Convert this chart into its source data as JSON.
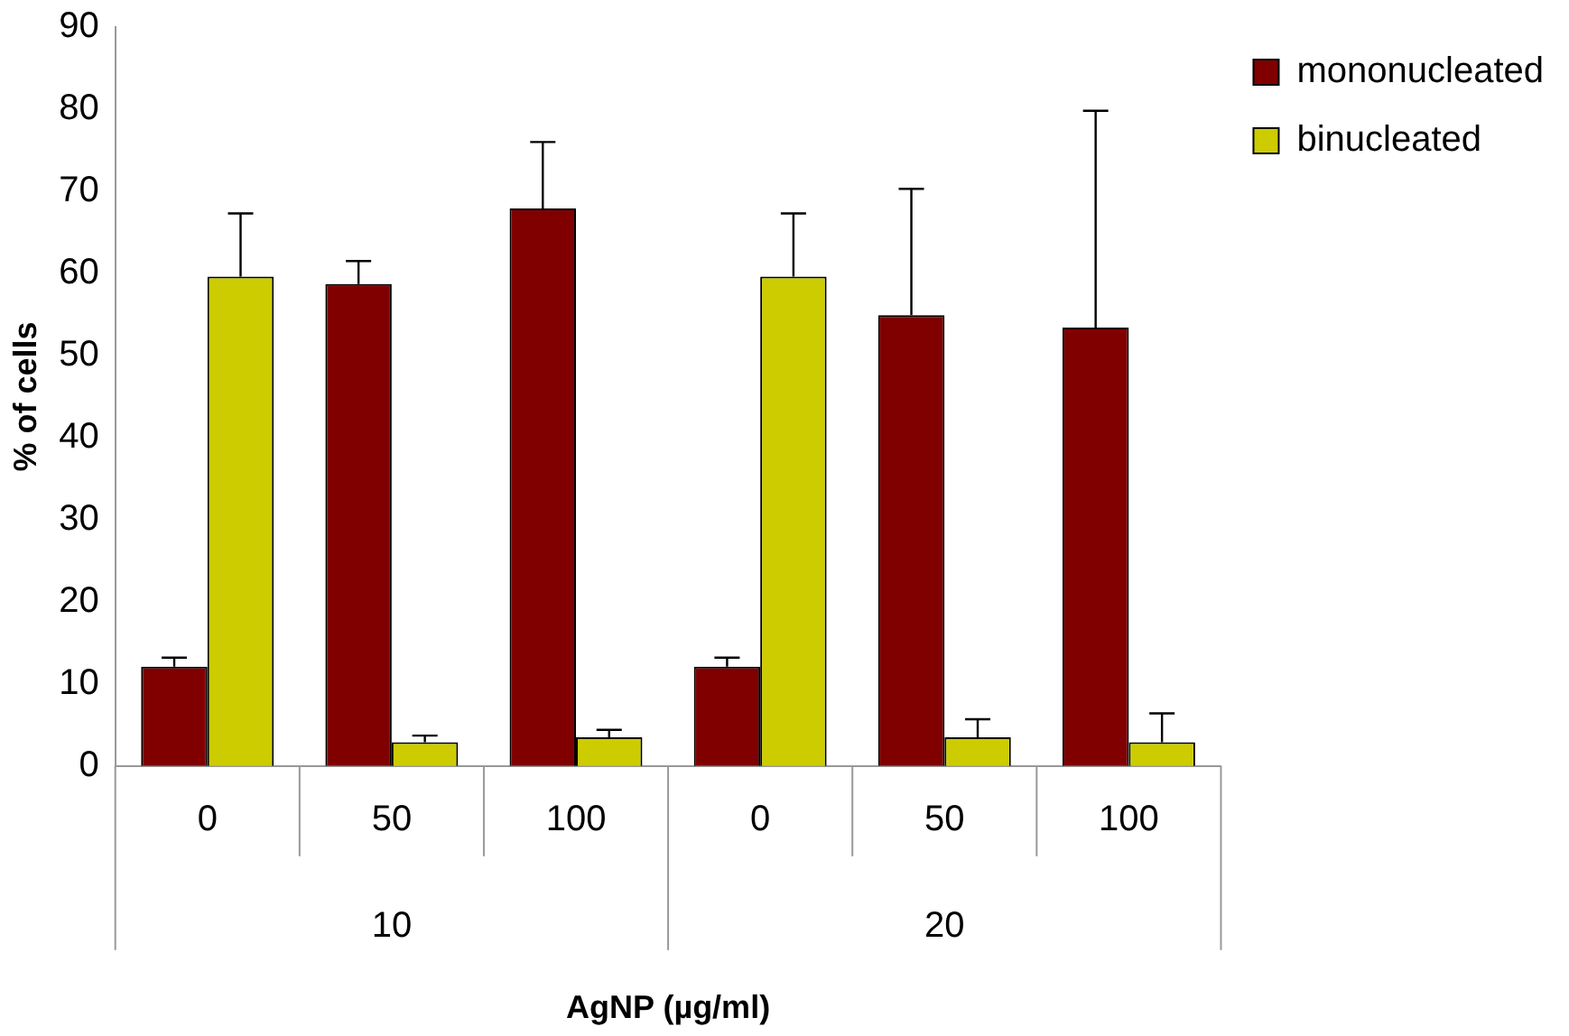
{
  "chart_data": {
    "type": "bar",
    "xlabel": "AgNP (µg/ml)",
    "ylabel": "% of cells",
    "categories": [
      "0",
      "50",
      "100",
      "0",
      "50",
      "100"
    ],
    "series": [
      {
        "name": "mononucleated",
        "color": "#800000",
        "values": [
          12.1,
          58.7,
          67.9,
          12.1,
          54.9,
          53.4
        ],
        "errors": [
          [
            12.1,
            13.2
          ],
          [
            58.7,
            61.5
          ],
          [
            67.9,
            76
          ],
          [
            12.1,
            13.2
          ],
          [
            54.9,
            70.3
          ],
          [
            53.4,
            79.8
          ]
        ]
      },
      {
        "name": "binucleated",
        "color": "#cccc00",
        "values": [
          59.6,
          2.9,
          3.5,
          59.6,
          3.5,
          2.9
        ],
        "errors": [
          [
            59.6,
            67.3
          ],
          [
            2.9,
            3.7
          ],
          [
            3.5,
            4.4
          ],
          [
            59.6,
            67.3
          ],
          [
            3.5,
            5.7
          ],
          [
            2.9,
            6.4
          ]
        ]
      }
    ],
    "annotations": [
      "10",
      "20"
    ],
    "ylim": [
      0,
      90
    ],
    "yticks": [
      0,
      10,
      20,
      30,
      40,
      50,
      60,
      70,
      80,
      90
    ],
    "grid": false,
    "legend": "top right"
  }
}
